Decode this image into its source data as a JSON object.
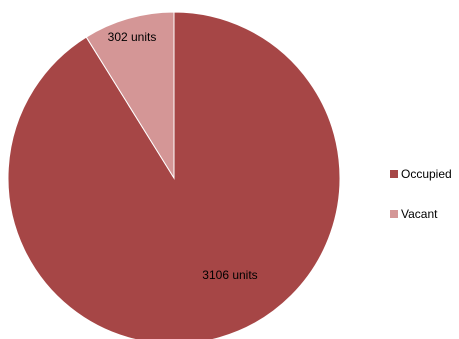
{
  "chart_data": {
    "type": "pie",
    "categories": [
      "Occupied",
      "Vacant"
    ],
    "values": [
      3106,
      302
    ],
    "data_labels": [
      "3106 units",
      "302 units"
    ],
    "colors": [
      "#a64646",
      "#d49696"
    ],
    "legend_placement": "right",
    "title": ""
  }
}
